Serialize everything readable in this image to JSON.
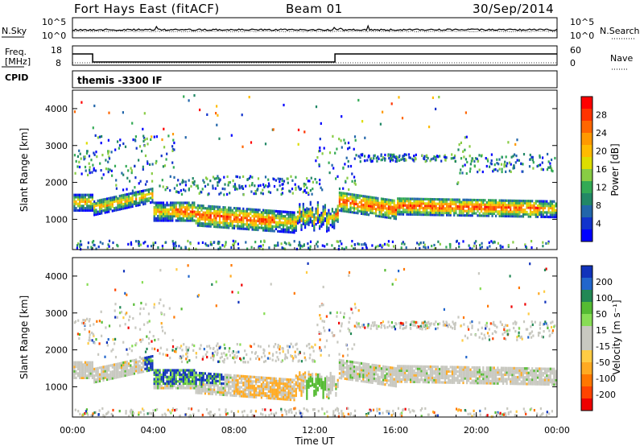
{
  "header": {
    "site": "Fort Hays East (fitACF)",
    "beam": "Beam 01",
    "date": "30/Sep/2014"
  },
  "noise_panel": {
    "left_label": "N.Sky",
    "right_label": "N.Search",
    "left_ticks": [
      "10^5",
      "10^0"
    ],
    "right_ticks": [
      "10^5",
      "10^0"
    ]
  },
  "freq_panel": {
    "left_label_1": "Freq.",
    "left_label_2": "[MHz]",
    "right_label": "Nave",
    "left_ticks": [
      "18",
      "8"
    ],
    "right_ticks": [
      "60",
      "0"
    ]
  },
  "cpid_panel": {
    "label": "CPID",
    "value": "themis -3300 IF"
  },
  "power_panel": {
    "ylabel": "Slant Range [km]",
    "yticks": [
      "4000",
      "3000",
      "2000",
      "1000"
    ],
    "colorbar_label": "Power [dB]",
    "colorbar_ticks": [
      "28",
      "24",
      "20",
      "16",
      "12",
      "8",
      "4"
    ],
    "colors": [
      "#ff0000",
      "#ff3300",
      "#ff6600",
      "#ff9900",
      "#ffbb00",
      "#dddd00",
      "#88cc44",
      "#33aa55",
      "#228866",
      "#2266aa",
      "#1133cc",
      "#0000ff"
    ]
  },
  "velocity_panel": {
    "ylabel": "Slant Range [km]",
    "yticks": [
      "4000",
      "3000",
      "2000",
      "1000"
    ],
    "colorbar_label": "Velocity [m s⁻¹]",
    "colorbar_ticks": [
      "200",
      "100",
      "50",
      "15",
      "-15",
      "-50",
      "-100",
      "-200"
    ],
    "colors": [
      "#1133bb",
      "#2266cc",
      "#228855",
      "#55bb33",
      "#88dd55",
      "#c8c8c0",
      "#c8c8c0",
      "#ffcc44",
      "#ffaa22",
      "#ff7700",
      "#ff4400",
      "#ee0000"
    ]
  },
  "xaxis": {
    "label": "Time UT",
    "ticks": [
      "00:00",
      "04:00",
      "08:00",
      "12:00",
      "16:00",
      "20:00",
      "00:00"
    ]
  },
  "chart_data": [
    {
      "type": "line",
      "name": "noise",
      "x": [
        0,
        24
      ],
      "note_series": [
        "N.Sky",
        "N.Search"
      ]
    },
    {
      "type": "line",
      "name": "frequency",
      "series": [
        {
          "name": "Freq.",
          "x": [
            0,
            1,
            1,
            13,
            13,
            24
          ],
          "values": [
            14,
            14,
            9,
            9,
            14,
            14
          ]
        },
        {
          "name": "Nave",
          "x": [
            0,
            24
          ],
          "values": [
            8,
            8
          ]
        }
      ],
      "ylim": [
        8,
        18
      ]
    },
    {
      "type": "heatmap",
      "name": "power",
      "xlim": [
        0,
        24
      ],
      "ylim": [
        180,
        4500
      ],
      "xlabel": "Time UT",
      "ylabel": "Slant Range [km]",
      "colorbar_label": "Power [dB]"
    },
    {
      "type": "heatmap",
      "name": "velocity",
      "xlim": [
        0,
        24
      ],
      "ylim": [
        180,
        4500
      ],
      "xlabel": "Time UT",
      "ylabel": "Slant Range [km]",
      "colorbar_label": "Velocity [m s⁻¹]"
    }
  ]
}
